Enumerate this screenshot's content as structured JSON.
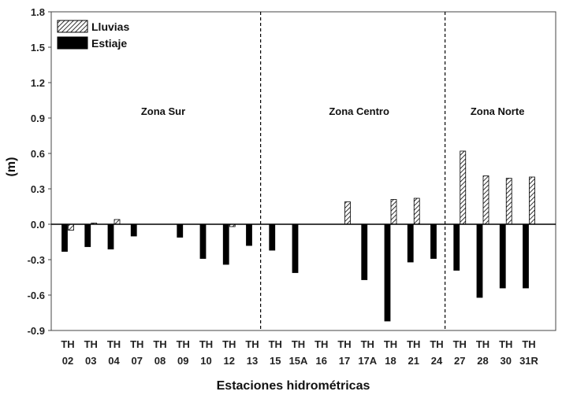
{
  "chart_data": {
    "type": "bar",
    "xlabel": "Estaciones hidrométricas",
    "ylabel": "(m)",
    "ylim": [
      -0.9,
      1.8
    ],
    "yticks": [
      "1.8",
      "1.5",
      "1.2",
      "0.9",
      "0.6",
      "0.3",
      "0.0",
      "-0.3",
      "-0.6",
      "-0.9"
    ],
    "grid": false,
    "legend_position": "top-left",
    "categories": [
      [
        "TH",
        "02"
      ],
      [
        "TH",
        "03"
      ],
      [
        "TH",
        "04"
      ],
      [
        "TH",
        "07"
      ],
      [
        "TH",
        "08"
      ],
      [
        "TH",
        "09"
      ],
      [
        "TH",
        "10"
      ],
      [
        "TH",
        "12"
      ],
      [
        "TH",
        "13"
      ],
      [
        "TH",
        "15"
      ],
      [
        "TH",
        "15A"
      ],
      [
        "TH",
        "16"
      ],
      [
        "TH",
        "17"
      ],
      [
        "TH",
        "17A"
      ],
      [
        "TH",
        "18"
      ],
      [
        "TH",
        "21"
      ],
      [
        "TH",
        "24"
      ],
      [
        "TH",
        "27"
      ],
      [
        "TH",
        "28"
      ],
      [
        "TH",
        "30"
      ],
      [
        "TH",
        "31R"
      ]
    ],
    "series": [
      {
        "name": "Lluvias",
        "pattern": "hatched",
        "values": [
          -0.05,
          0.01,
          0.04,
          0,
          0,
          0,
          0,
          -0.02,
          0,
          0,
          0,
          0,
          0.19,
          0,
          0.21,
          0.22,
          0,
          0.62,
          0.41,
          0.39,
          0.4
        ]
      },
      {
        "name": "Estiaje",
        "color": "#000000",
        "values": [
          -0.23,
          -0.19,
          -0.21,
          -0.1,
          0,
          -0.11,
          -0.29,
          -0.34,
          -0.18,
          -0.22,
          -0.41,
          0,
          0,
          -0.47,
          -0.82,
          -0.32,
          -0.29,
          -0.39,
          -0.62,
          -0.54,
          -0.54
        ]
      }
    ],
    "zones": [
      {
        "label": "Zona Sur",
        "start": 0,
        "end": 8
      },
      {
        "label": "Zona Centro",
        "start": 9,
        "end": 16
      },
      {
        "label": "Zona Norte",
        "start": 17,
        "end": 20
      }
    ]
  }
}
